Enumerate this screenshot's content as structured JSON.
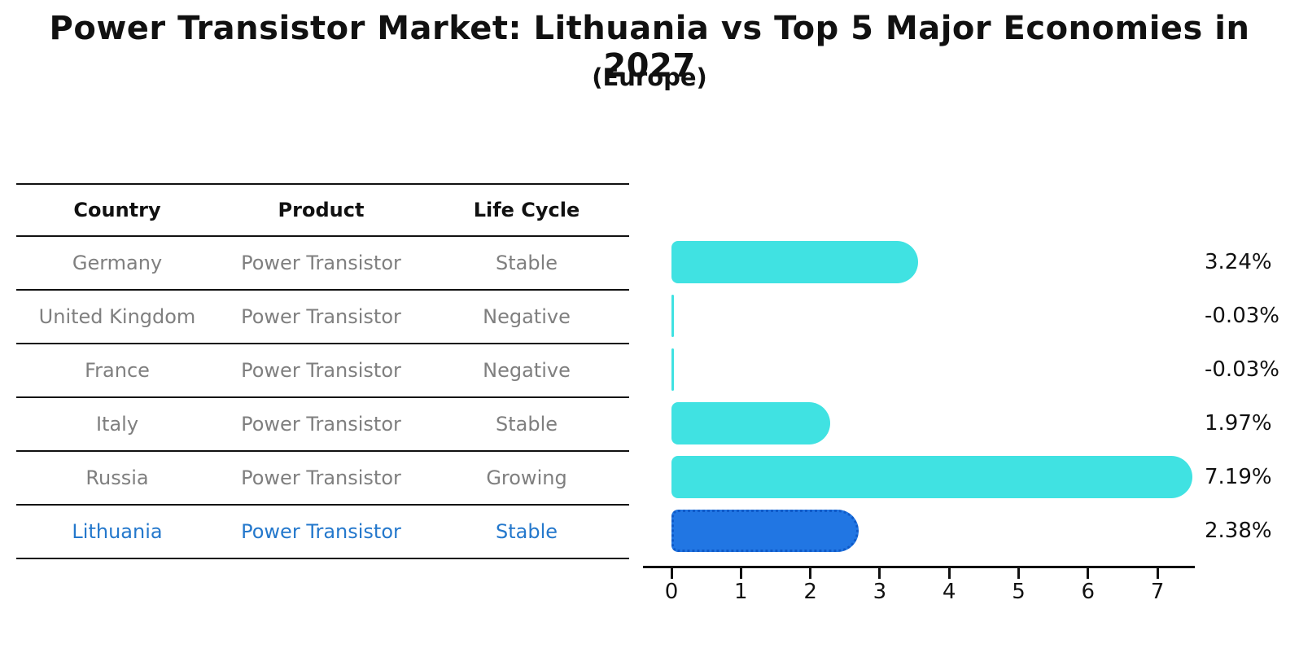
{
  "title": "Power Transistor Market: Lithuania vs Top 5 Major Economies in 2027",
  "subtitle": "(Europe)",
  "table": {
    "headers": [
      "Country",
      "Product",
      "Life Cycle"
    ],
    "rows": [
      {
        "country": "Germany",
        "product": "Power Transistor",
        "life_cycle": "Stable",
        "highlight": false
      },
      {
        "country": "United Kingdom",
        "product": "Power Transistor",
        "life_cycle": "Negative",
        "highlight": false
      },
      {
        "country": "France",
        "product": "Power Transistor",
        "life_cycle": "Negative",
        "highlight": false
      },
      {
        "country": "Italy",
        "product": "Power Transistor",
        "life_cycle": "Stable",
        "highlight": false
      },
      {
        "country": "Russia",
        "product": "Power Transistor",
        "life_cycle": "Growing",
        "highlight": false
      },
      {
        "country": "Lithuania",
        "product": "Power Transistor",
        "life_cycle": "Stable",
        "highlight": true
      }
    ]
  },
  "chart_data": {
    "type": "bar",
    "orientation": "horizontal",
    "title": "Power Transistor Market: Lithuania vs Top 5 Major Economies in 2027 (Europe)",
    "categories": [
      "Germany",
      "United Kingdom",
      "France",
      "Italy",
      "Russia",
      "Lithuania"
    ],
    "values": [
      3.24,
      -0.03,
      -0.03,
      1.97,
      7.19,
      2.38
    ],
    "value_labels": [
      "3.24%",
      "-0.03%",
      "-0.03%",
      "1.97%",
      "7.19%",
      "2.38%"
    ],
    "xticks": [
      "0",
      "1",
      "2",
      "3",
      "4",
      "5",
      "6",
      "7"
    ],
    "xlim": [
      0,
      7.5
    ],
    "grid": false,
    "legend": "none",
    "highlight_index": 5,
    "bar_color": "#40e2e2",
    "highlight_bar_color": "#2176e3",
    "highlight_border_color": "#0f5ac8"
  },
  "colors": {
    "background": "#ffffff",
    "text": "#111111",
    "muted": "#7f7f7f",
    "line": "#111111",
    "highlight_text": "#2478cc"
  }
}
